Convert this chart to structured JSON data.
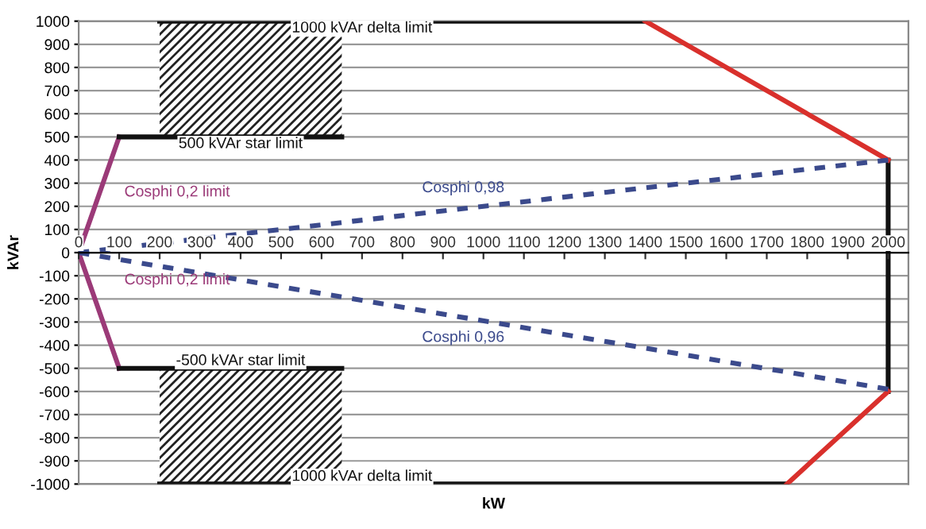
{
  "chart_data": {
    "type": "line",
    "xlabel": "kW",
    "ylabel": "kVAr",
    "xlim": [
      0,
      2050
    ],
    "ylim": [
      -1000,
      1000
    ],
    "xticks": [
      0,
      100,
      200,
      300,
      400,
      500,
      600,
      700,
      800,
      900,
      1000,
      1100,
      1200,
      1300,
      1400,
      1500,
      1600,
      1700,
      1800,
      1900,
      2000
    ],
    "yticks": [
      -1000,
      -900,
      -800,
      -700,
      -600,
      -500,
      -400,
      -300,
      -200,
      -100,
      0,
      100,
      200,
      300,
      400,
      500,
      600,
      700,
      800,
      900,
      1000
    ],
    "grid": "y",
    "legend": false,
    "marker": "none",
    "series": [
      {
        "color": "#9b3a78",
        "x": [
          100,
          0,
          100
        ],
        "values": [
          500,
          0,
          -500
        ],
        "line_style": "solid"
      },
      {
        "color": "#111111",
        "x": [
          100,
          650
        ],
        "values": [
          500,
          500
        ],
        "line_style": "solid"
      },
      {
        "color": "#111111",
        "x": [
          100,
          650
        ],
        "values": [
          -500,
          -500
        ],
        "line_style": "solid"
      },
      {
        "color": "#111111",
        "x": [
          200,
          1400
        ],
        "values": [
          1000,
          1000
        ],
        "line_style": "solid"
      },
      {
        "color": "#111111",
        "x": [
          200,
          1750
        ],
        "values": [
          -1000,
          -1000
        ],
        "line_style": "solid"
      },
      {
        "color": "#111111",
        "x": [
          2000,
          2000
        ],
        "values": [
          400,
          -600
        ],
        "line_style": "solid"
      },
      {
        "color": "#d9302c",
        "x": [
          1400,
          2000
        ],
        "values": [
          1000,
          400
        ],
        "line_style": "solid"
      },
      {
        "color": "#d9302c",
        "x": [
          2000,
          1750
        ],
        "values": [
          -600,
          -1000
        ],
        "line_style": "solid"
      },
      {
        "color": "#3b4a8c",
        "x": [
          0,
          2000
        ],
        "values": [
          0,
          400
        ],
        "line_style": "dashed"
      },
      {
        "color": "#3b4a8c",
        "x": [
          0,
          2000
        ],
        "values": [
          0,
          -590
        ],
        "line_style": "dashed"
      }
    ],
    "annotations": [
      {
        "text": "1000 kVAr delta limit",
        "x": 700,
        "y": 1000
      },
      {
        "text": "500 kVAr star limit",
        "x": 400,
        "y": 500
      },
      "Cosphi 0,2 limit",
      {
        "text": "Cosphi 0,98",
        "x": 950,
        "y": 190
      },
      "Cosphi 0,2 limit",
      {
        "text": "Cosphi 0,96",
        "x": 950,
        "y": -280
      },
      {
        "text": "-500 kVAr star limit",
        "x": 400,
        "y": -500
      },
      {
        "text": "1000 kVAr delta limit",
        "x": 700,
        "y": -1000
      }
    ]
  }
}
